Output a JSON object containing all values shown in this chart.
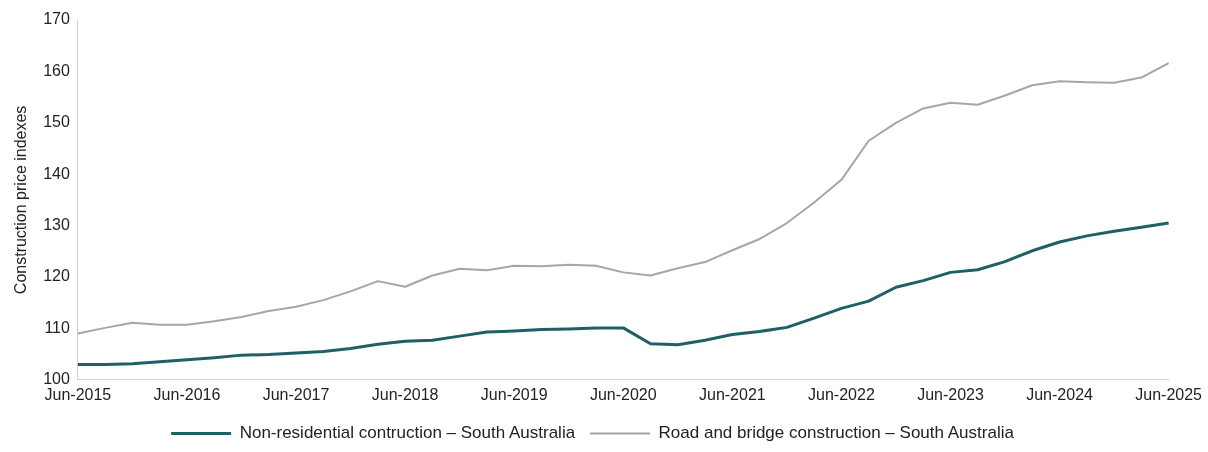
{
  "chart_data": {
    "type": "line",
    "ylabel": "Construction price indexes",
    "categories": [
      "Jun-2015",
      null,
      null,
      null,
      "Jun-2016",
      null,
      null,
      null,
      "Jun-2017",
      null,
      null,
      null,
      "Jun-2018",
      null,
      null,
      null,
      "Jun-2019",
      null,
      null,
      null,
      "Jun-2020",
      null,
      null,
      null,
      "Jun-2021",
      null,
      null,
      null,
      "Jun-2022",
      null,
      null,
      null,
      "Jun-2023",
      null,
      null,
      null,
      "Jun-2024",
      null,
      null,
      null,
      "Jun-2025"
    ],
    "series": [
      {
        "name": "Non-residential contruction – South Australia",
        "color": "#1f5f66",
        "values": [
          103,
          103,
          103.1,
          103.5,
          103.9,
          104.3,
          104.8,
          104.9,
          105.2,
          105.5,
          106.1,
          106.9,
          107.5,
          107.7,
          108.5,
          109.3,
          109.5,
          109.8,
          109.9,
          110.1,
          110.1,
          107,
          106.8,
          107.7,
          108.8,
          109.4,
          110.2,
          112,
          113.9,
          115.3,
          118,
          119.3,
          120.9,
          121.4,
          123,
          125.1,
          126.8,
          128,
          128.9,
          129.7,
          130.5
        ]
      },
      {
        "name": "Road and bridge construction – South Australia",
        "color": "#a6a6a6",
        "values": [
          109,
          110.1,
          111.1,
          110.7,
          110.7,
          111.4,
          112.2,
          113.4,
          114.2,
          115.5,
          117.2,
          119.2,
          118.1,
          120.3,
          121.6,
          121.3,
          122.2,
          122.1,
          122.4,
          122.2,
          120.9,
          120.3,
          121.7,
          122.9,
          125.2,
          127.4,
          130.5,
          134.5,
          138.9,
          146.5,
          150,
          152.8,
          153.9,
          153.5,
          155.3,
          157.3,
          158.1,
          157.9,
          157.8,
          158.8,
          161.6
        ]
      }
    ],
    "ylim": [
      100,
      170
    ],
    "yticks": [
      100,
      110,
      120,
      130,
      140,
      150,
      160,
      170
    ],
    "grid": false,
    "legend": "bottom",
    "marker": "none",
    "line_style": "solid"
  }
}
